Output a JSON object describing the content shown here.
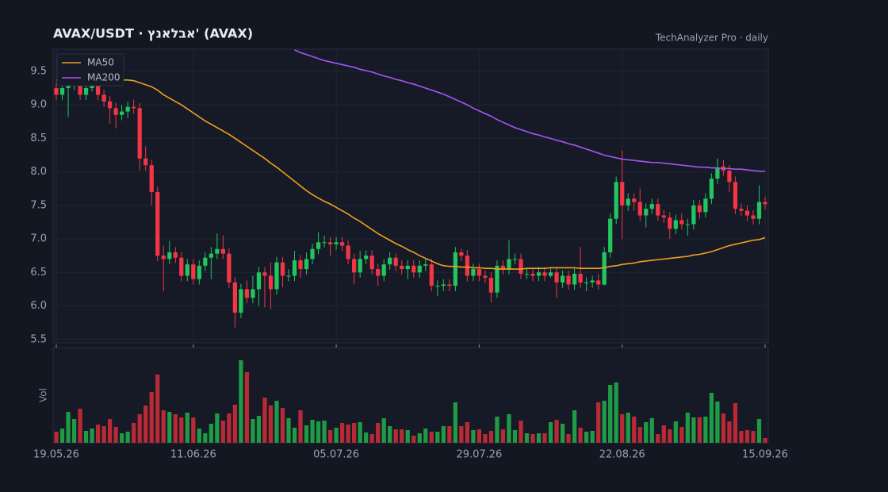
{
  "chart_data": {
    "type": "candlestick",
    "title": "AVAX/USDT  ·  אבלאנץ' (AVAX)",
    "subtitle": "TechAnalyzer Pro · daily",
    "volume_label": "Vol",
    "up_color": "#22c55e",
    "down_color": "#f23645",
    "volume_up_color": "#1f9a45",
    "volume_down_color": "#b82a36",
    "grid": true,
    "legend": "top-left",
    "x": [
      "2026-05-19",
      "2026-05-20",
      "2026-05-21",
      "2026-05-22",
      "2026-05-23",
      "2026-05-24",
      "2026-05-25",
      "2026-05-26",
      "2026-05-27",
      "2026-05-28",
      "2026-05-29",
      "2026-05-30",
      "2026-05-31",
      "2026-06-01",
      "2026-06-02",
      "2026-06-03",
      "2026-06-04",
      "2026-06-05",
      "2026-06-06",
      "2026-06-07",
      "2026-06-08",
      "2026-06-09",
      "2026-06-10",
      "2026-06-11",
      "2026-06-12",
      "2026-06-13",
      "2026-06-14",
      "2026-06-15",
      "2026-06-16",
      "2026-06-17",
      "2026-06-18",
      "2026-06-19",
      "2026-06-20",
      "2026-06-21",
      "2026-06-22",
      "2026-06-23",
      "2026-06-24",
      "2026-06-25",
      "2026-06-26",
      "2026-06-27",
      "2026-06-28",
      "2026-06-29",
      "2026-06-30",
      "2026-07-01",
      "2026-07-02",
      "2026-07-03",
      "2026-07-04",
      "2026-07-05",
      "2026-07-06",
      "2026-07-07",
      "2026-07-08",
      "2026-07-09",
      "2026-07-10",
      "2026-07-11",
      "2026-07-12",
      "2026-07-13",
      "2026-07-14",
      "2026-07-15",
      "2026-07-16",
      "2026-07-17",
      "2026-07-18",
      "2026-07-19",
      "2026-07-20",
      "2026-07-21",
      "2026-07-22",
      "2026-07-23",
      "2026-07-24",
      "2026-07-25",
      "2026-07-26",
      "2026-07-27",
      "2026-07-28",
      "2026-07-29",
      "2026-07-30",
      "2026-07-31",
      "2026-08-01",
      "2026-08-02",
      "2026-08-03",
      "2026-08-04",
      "2026-08-05",
      "2026-08-06",
      "2026-08-07",
      "2026-08-08",
      "2026-08-09",
      "2026-08-10",
      "2026-08-11",
      "2026-08-12",
      "2026-08-13",
      "2026-08-14",
      "2026-08-15",
      "2026-08-16",
      "2026-08-17",
      "2026-08-18",
      "2026-08-19",
      "2026-08-20",
      "2026-08-21",
      "2026-08-22",
      "2026-08-23",
      "2026-08-24",
      "2026-08-25",
      "2026-08-26",
      "2026-08-27",
      "2026-08-28",
      "2026-08-29",
      "2026-08-30",
      "2026-08-31",
      "2026-09-01",
      "2026-09-02",
      "2026-09-03",
      "2026-09-04",
      "2026-09-05",
      "2026-09-06",
      "2026-09-07",
      "2026-09-08",
      "2026-09-09",
      "2026-09-10",
      "2026-09-11",
      "2026-09-12",
      "2026-09-13",
      "2026-09-14",
      "2026-09-15"
    ],
    "open": [
      9.25,
      9.15,
      9.25,
      9.3,
      9.35,
      9.15,
      9.25,
      9.3,
      9.15,
      9.05,
      8.95,
      8.85,
      8.9,
      8.97,
      8.95,
      8.2,
      8.1,
      7.7,
      6.75,
      6.7,
      6.8,
      6.72,
      6.45,
      6.62,
      6.4,
      6.6,
      6.72,
      6.78,
      6.85,
      6.78,
      6.35,
      5.9,
      6.25,
      6.12,
      6.25,
      6.5,
      6.45,
      6.25,
      6.65,
      6.45,
      6.45,
      6.68,
      6.55,
      6.7,
      6.85,
      6.95,
      6.95,
      6.92,
      6.95,
      6.9,
      6.7,
      6.5,
      6.7,
      6.75,
      6.55,
      6.45,
      6.62,
      6.72,
      6.6,
      6.55,
      6.6,
      6.5,
      6.6,
      6.62,
      6.3,
      6.3,
      6.32,
      6.3,
      6.8,
      6.75,
      6.45,
      6.55,
      6.45,
      6.42,
      6.2,
      6.6,
      6.55,
      6.7,
      6.7,
      6.48,
      6.48,
      6.45,
      6.5,
      6.45,
      6.5,
      6.35,
      6.45,
      6.32,
      6.48,
      6.35,
      6.35,
      6.38,
      6.32,
      6.8,
      7.3,
      7.85,
      7.5,
      7.6,
      7.55,
      7.35,
      7.45,
      7.52,
      7.35,
      7.32,
      7.15,
      7.28,
      7.22,
      7.22,
      7.5,
      7.4,
      7.6,
      7.9,
      8.08,
      8.02,
      7.85,
      7.45,
      7.42,
      7.35,
      7.3,
      7.55
    ],
    "high": [
      9.33,
      9.5,
      9.45,
      9.43,
      9.43,
      9.33,
      9.38,
      9.38,
      9.23,
      9.13,
      9.03,
      9.0,
      9.05,
      9.08,
      9.03,
      8.38,
      8.18,
      7.78,
      6.9,
      6.97,
      6.88,
      6.8,
      6.7,
      6.7,
      6.68,
      6.8,
      6.88,
      7.08,
      7.05,
      6.86,
      6.43,
      6.33,
      6.38,
      6.45,
      6.58,
      6.58,
      6.65,
      6.73,
      6.73,
      6.55,
      6.82,
      6.76,
      6.8,
      6.93,
      7.1,
      7.05,
      7.03,
      7.03,
      7.03,
      6.98,
      6.78,
      6.82,
      6.83,
      6.83,
      6.63,
      6.7,
      6.8,
      6.78,
      6.68,
      6.68,
      6.68,
      6.68,
      6.7,
      6.7,
      6.38,
      6.4,
      6.4,
      6.88,
      6.85,
      6.83,
      6.63,
      6.63,
      6.53,
      6.5,
      6.68,
      6.68,
      6.98,
      6.78,
      6.78,
      6.56,
      6.56,
      6.58,
      6.58,
      6.58,
      6.58,
      6.53,
      6.53,
      6.56,
      6.88,
      6.43,
      6.45,
      6.48,
      6.88,
      7.38,
      7.93,
      8.32,
      7.68,
      7.68,
      7.75,
      7.53,
      7.6,
      7.6,
      7.43,
      7.4,
      7.36,
      7.38,
      7.3,
      7.58,
      7.58,
      7.68,
      7.98,
      8.2,
      8.18,
      8.1,
      7.93,
      7.53,
      7.5,
      7.43,
      7.8,
      7.63
    ],
    "low": [
      9.07,
      9.07,
      8.82,
      9.22,
      9.07,
      9.07,
      9.2,
      9.07,
      8.97,
      8.72,
      8.65,
      8.77,
      8.8,
      8.87,
      8.02,
      8.02,
      7.5,
      6.67,
      6.22,
      6.62,
      6.64,
      6.37,
      6.37,
      6.32,
      6.32,
      6.52,
      6.4,
      6.7,
      6.7,
      6.27,
      5.68,
      5.82,
      6.04,
      6.04,
      6.0,
      5.98,
      5.95,
      6.17,
      6.28,
      6.37,
      6.37,
      6.42,
      6.47,
      6.62,
      6.77,
      6.87,
      6.74,
      6.84,
      6.82,
      6.62,
      6.32,
      6.42,
      6.62,
      6.47,
      6.3,
      6.37,
      6.54,
      6.52,
      6.47,
      6.4,
      6.42,
      6.42,
      6.52,
      6.22,
      6.15,
      6.22,
      6.22,
      6.22,
      6.67,
      6.37,
      6.37,
      6.37,
      6.34,
      6.05,
      6.12,
      6.47,
      6.47,
      6.62,
      6.4,
      6.4,
      6.37,
      6.37,
      6.37,
      6.42,
      6.12,
      6.27,
      6.24,
      6.24,
      6.27,
      6.22,
      6.27,
      6.24,
      6.3,
      6.72,
      7.22,
      7.0,
      7.42,
      7.42,
      7.27,
      7.17,
      7.37,
      7.27,
      7.24,
      7.0,
      7.07,
      7.14,
      7.05,
      7.14,
      7.3,
      7.32,
      7.52,
      7.82,
      7.94,
      7.7,
      7.37,
      7.34,
      7.27,
      7.22,
      7.22,
      7.44
    ],
    "close": [
      9.15,
      9.25,
      9.3,
      9.35,
      9.15,
      9.25,
      9.3,
      9.15,
      9.05,
      8.95,
      8.85,
      8.9,
      8.97,
      8.95,
      8.2,
      8.1,
      7.7,
      6.75,
      6.7,
      6.8,
      6.72,
      6.45,
      6.62,
      6.4,
      6.6,
      6.72,
      6.78,
      6.85,
      6.78,
      6.35,
      5.9,
      6.25,
      6.12,
      6.25,
      6.5,
      6.45,
      6.25,
      6.65,
      6.45,
      6.45,
      6.68,
      6.55,
      6.7,
      6.85,
      6.95,
      6.95,
      6.92,
      6.95,
      6.9,
      6.7,
      6.5,
      6.7,
      6.75,
      6.55,
      6.45,
      6.62,
      6.72,
      6.6,
      6.55,
      6.6,
      6.5,
      6.6,
      6.62,
      6.3,
      6.3,
      6.32,
      6.3,
      6.8,
      6.75,
      6.45,
      6.55,
      6.45,
      6.42,
      6.2,
      6.6,
      6.55,
      6.7,
      6.7,
      6.48,
      6.48,
      6.45,
      6.5,
      6.45,
      6.5,
      6.35,
      6.45,
      6.32,
      6.48,
      6.35,
      6.35,
      6.38,
      6.32,
      6.8,
      7.3,
      7.85,
      7.5,
      7.6,
      7.55,
      7.35,
      7.45,
      7.52,
      7.35,
      7.32,
      7.15,
      7.28,
      7.22,
      7.22,
      7.5,
      7.4,
      7.6,
      7.9,
      8.05,
      8.02,
      7.85,
      7.45,
      7.42,
      7.35,
      7.3,
      7.55,
      7.52
    ],
    "volume": [
      14,
      18,
      39,
      30,
      43,
      15,
      18,
      23,
      21,
      30,
      20,
      12,
      14,
      25,
      36,
      47,
      64,
      86,
      41,
      39,
      36,
      32,
      38,
      32,
      18,
      12,
      24,
      37,
      28,
      37,
      48,
      104,
      89,
      30,
      34,
      57,
      47,
      53,
      44,
      31,
      19,
      41,
      22,
      29,
      27,
      28,
      16,
      19,
      25,
      23,
      25,
      26,
      13,
      11,
      25,
      31,
      21,
      17,
      17,
      16,
      9,
      12,
      18,
      14,
      14,
      21,
      21,
      51,
      21,
      26,
      16,
      17,
      11,
      15,
      33,
      17,
      36,
      16,
      28,
      12,
      11,
      12,
      12,
      26,
      29,
      24,
      11,
      41,
      19,
      14,
      15,
      51,
      53,
      73,
      76,
      36,
      38,
      33,
      20,
      26,
      31,
      11,
      22,
      17,
      27,
      20,
      38,
      32,
      32,
      33,
      63,
      52,
      37,
      27,
      50,
      15,
      16,
      15,
      30,
      6
    ],
    "volume_ylim": [
      0,
      110
    ],
    "series": [
      {
        "name": "MA50",
        "color": "#f0a020",
        "values": [
          9.37,
          9.37,
          9.37,
          9.37,
          9.37,
          9.37,
          9.37,
          9.37,
          9.37,
          9.37,
          9.37,
          9.37,
          9.37,
          9.36,
          9.33,
          9.3,
          9.27,
          9.22,
          9.15,
          9.1,
          9.05,
          9.0,
          8.94,
          8.88,
          8.82,
          8.76,
          8.71,
          8.66,
          8.61,
          8.56,
          8.5,
          8.44,
          8.38,
          8.32,
          8.26,
          8.2,
          8.13,
          8.07,
          8.0,
          7.93,
          7.86,
          7.79,
          7.72,
          7.66,
          7.61,
          7.56,
          7.52,
          7.47,
          7.42,
          7.37,
          7.31,
          7.26,
          7.2,
          7.14,
          7.08,
          7.03,
          6.98,
          6.93,
          6.89,
          6.84,
          6.8,
          6.75,
          6.71,
          6.67,
          6.63,
          6.6,
          6.59,
          6.59,
          6.58,
          6.58,
          6.57,
          6.57,
          6.56,
          6.56,
          6.55,
          6.55,
          6.55,
          6.55,
          6.55,
          6.56,
          6.56,
          6.56,
          6.56,
          6.57,
          6.57,
          6.57,
          6.57,
          6.57,
          6.56,
          6.56,
          6.56,
          6.56,
          6.57,
          6.59,
          6.6,
          6.62,
          6.63,
          6.64,
          6.66,
          6.67,
          6.68,
          6.69,
          6.7,
          6.71,
          6.72,
          6.73,
          6.74,
          6.76,
          6.77,
          6.79,
          6.81,
          6.84,
          6.87,
          6.9,
          6.92,
          6.94,
          6.96,
          6.98,
          6.99,
          7.02
        ]
      },
      {
        "name": "MA200",
        "color": "#a855f7",
        "values": [
          null,
          null,
          null,
          null,
          null,
          null,
          null,
          null,
          null,
          null,
          null,
          null,
          null,
          null,
          null,
          null,
          null,
          null,
          null,
          null,
          null,
          null,
          null,
          null,
          null,
          null,
          null,
          null,
          null,
          null,
          null,
          null,
          null,
          null,
          null,
          null,
          null,
          null,
          null,
          null,
          9.82,
          9.78,
          9.75,
          9.72,
          9.69,
          9.66,
          9.64,
          9.62,
          9.6,
          9.58,
          9.56,
          9.53,
          9.51,
          9.49,
          9.46,
          9.43,
          9.41,
          9.38,
          9.36,
          9.33,
          9.31,
          9.28,
          9.25,
          9.22,
          9.19,
          9.16,
          9.12,
          9.08,
          9.04,
          9.0,
          8.95,
          8.91,
          8.87,
          8.83,
          8.78,
          8.74,
          8.7,
          8.66,
          8.63,
          8.6,
          8.57,
          8.55,
          8.52,
          8.5,
          8.47,
          8.45,
          8.42,
          8.4,
          8.37,
          8.34,
          8.31,
          8.28,
          8.25,
          8.23,
          8.21,
          8.19,
          8.18,
          8.17,
          8.16,
          8.15,
          8.14,
          8.14,
          8.13,
          8.12,
          8.11,
          8.1,
          8.09,
          8.08,
          8.07,
          8.07,
          8.06,
          8.06,
          8.05,
          8.05,
          8.04,
          8.04,
          8.03,
          8.02,
          8.01,
          8.01
        ]
      }
    ],
    "ylim": [
      5.45,
      9.83
    ],
    "yticks": [
      5.5,
      {
        "value": 6,
        "label": "6.0"
      },
      6.5,
      {
        "value": 7,
        "label": "7.0"
      },
      7.5,
      {
        "value": 8,
        "label": "8.0"
      },
      8.5,
      {
        "value": 9,
        "label": "9.0"
      },
      9.5
    ],
    "xticks": [
      {
        "value": "2026-05-19",
        "label": "19.05.26"
      },
      {
        "value": "2026-06-11",
        "label": "11.06.26"
      },
      {
        "value": "2026-07-05",
        "label": "05.07.26"
      },
      {
        "value": "2026-07-29",
        "label": "29.07.26"
      },
      {
        "value": "2026-08-22",
        "label": "22.08.26"
      },
      {
        "value": "2026-09-15",
        "label": "15.09.26"
      }
    ]
  }
}
